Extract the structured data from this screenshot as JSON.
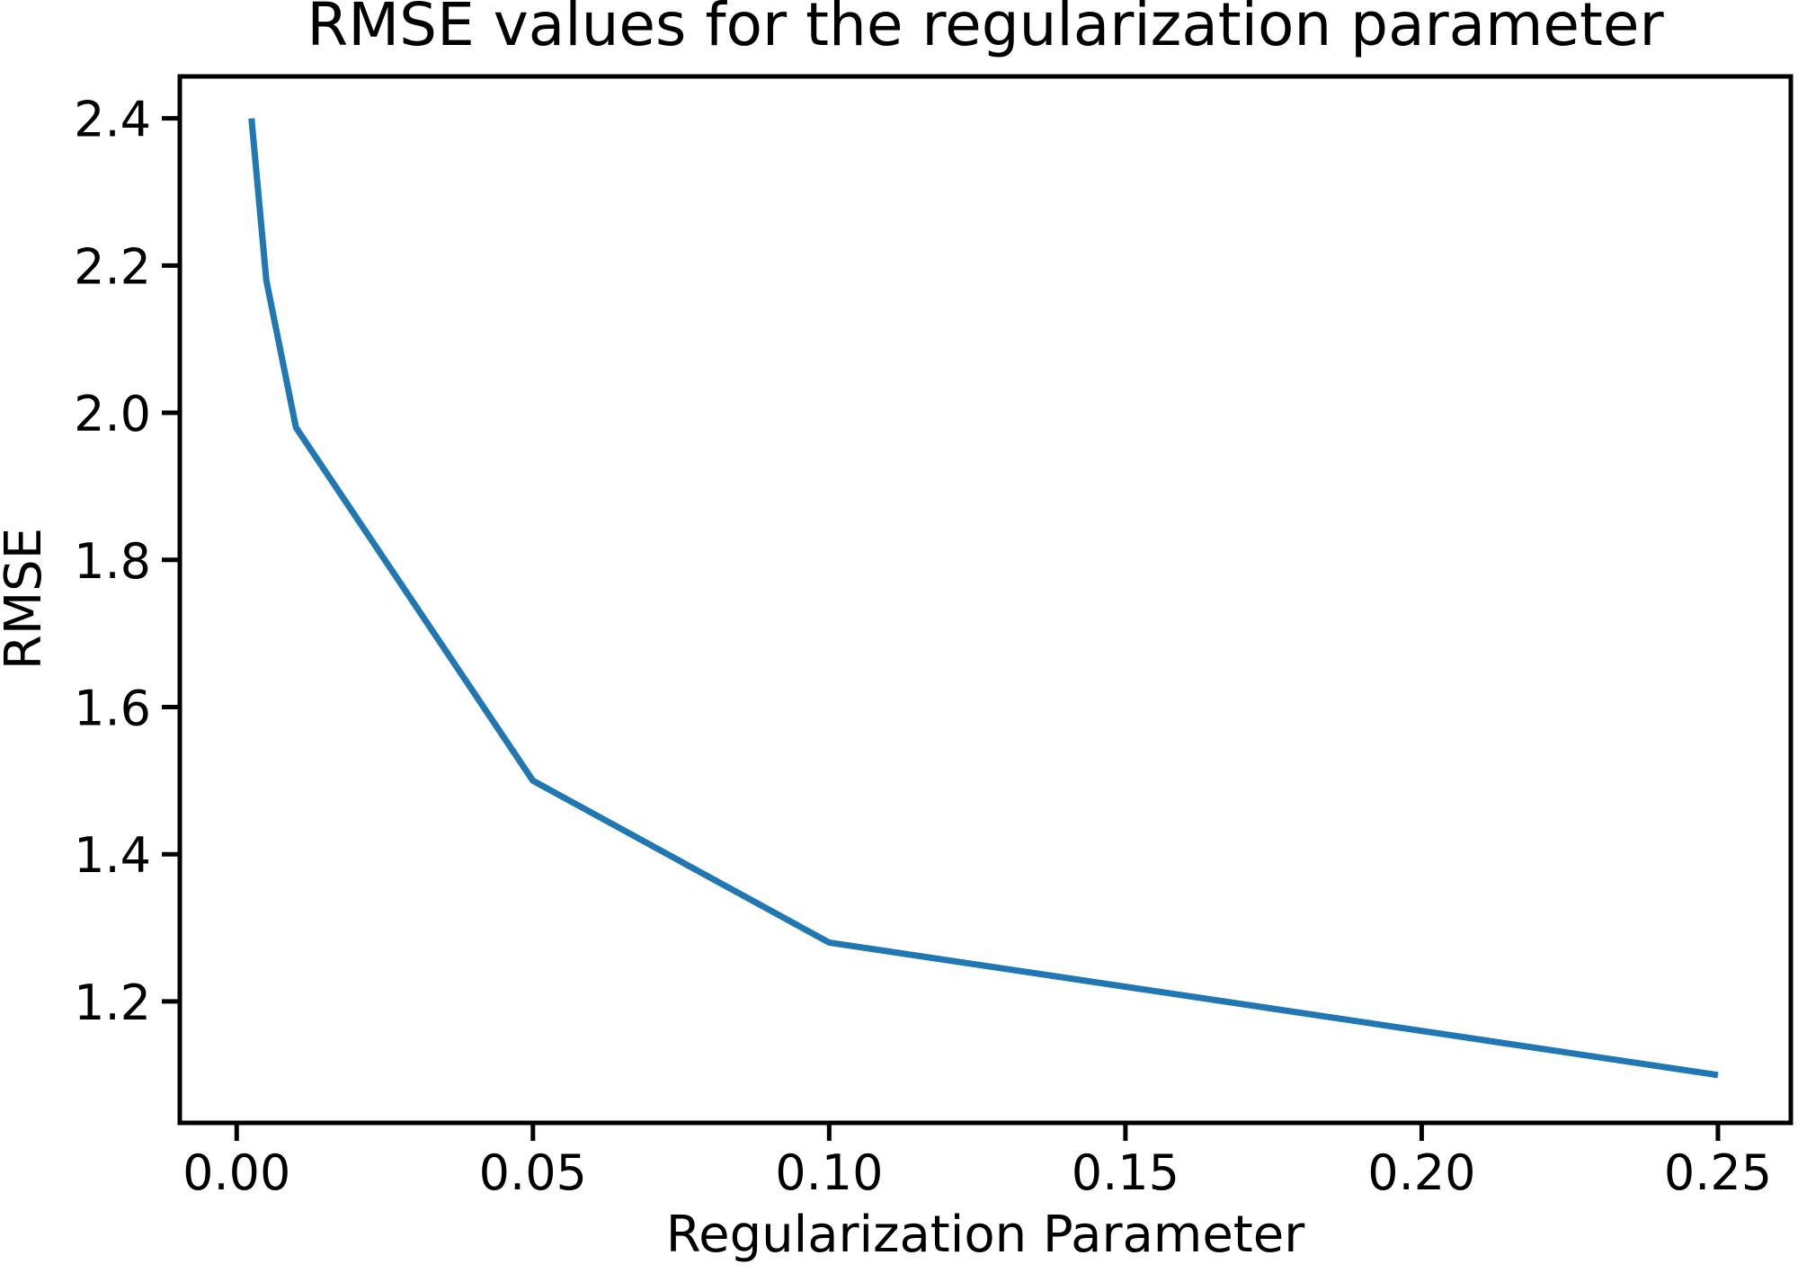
{
  "figure": {
    "title": "RMSE values for the regularization parameter"
  },
  "chart_data": {
    "type": "line",
    "title": "RMSE values for the regularization parameter",
    "xlabel": "Regularization Parameter",
    "ylabel": "RMSE",
    "series": [
      {
        "name": "RMSE",
        "x": [
          0.0025,
          0.005,
          0.01,
          0.05,
          0.1,
          0.25
        ],
        "y": [
          2.4,
          2.18,
          1.98,
          1.5,
          1.28,
          1.1
        ]
      }
    ],
    "xlim": [
      -0.0096,
      0.2623
    ],
    "ylim": [
      1.035,
      2.457
    ],
    "x_ticks": {
      "values": [
        0,
        0.05,
        0.1,
        0.15,
        0.2,
        0.25
      ],
      "labels": [
        "0.00",
        "0.05",
        "0.10",
        "0.15",
        "0.20",
        "0.25"
      ]
    },
    "y_ticks": {
      "values": [
        1.2,
        1.4,
        1.6,
        1.8,
        2.0,
        2.2,
        2.4
      ],
      "labels": [
        "1.2",
        "1.4",
        "1.6",
        "1.8",
        "2.0",
        "2.2",
        "2.4"
      ]
    },
    "grid": false,
    "legend": "none",
    "line_color": "#1f77b4",
    "line_width": 7,
    "axis_color": "#000000",
    "background": "#ffffff"
  }
}
